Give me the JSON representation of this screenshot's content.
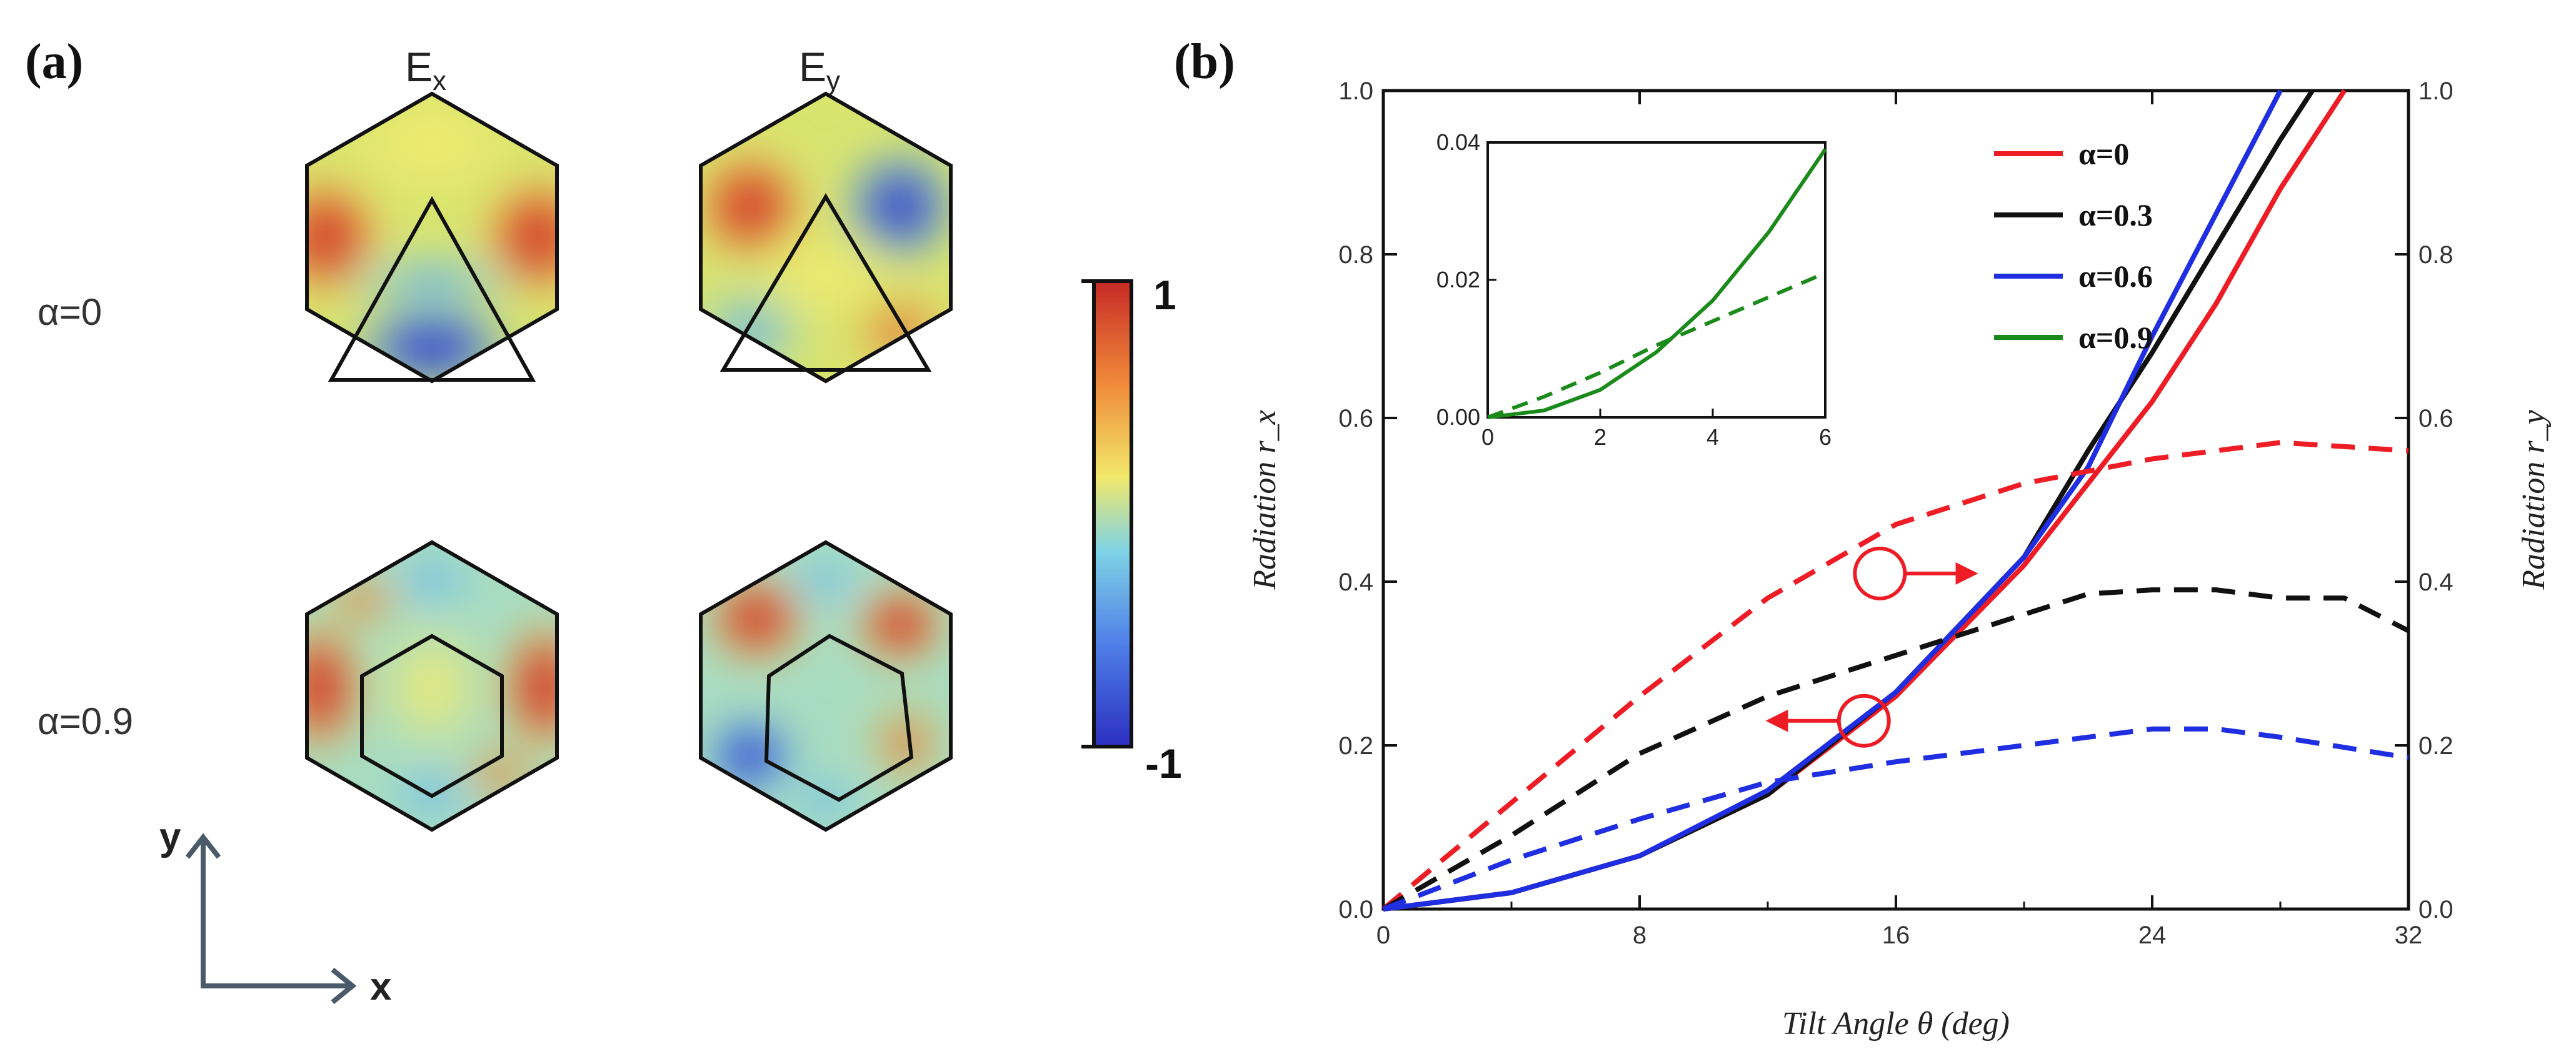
{
  "panel_a": {
    "tag": "(a)",
    "col_ex": "E",
    "col_ex_sub": "x",
    "col_ey": "E",
    "col_ey_sub": "y",
    "row1": "α=0",
    "row2": "α=0.9",
    "colorbar_max": "1",
    "colorbar_min": "-1",
    "axis_y": "y",
    "axis_x": "x",
    "colormap": [
      "#2b2fc0",
      "#4f7fe8",
      "#7fd3e6",
      "#f2e86a",
      "#f08a3a",
      "#c62a25"
    ]
  },
  "panel_b": {
    "tag": "(b)",
    "colors": {
      "a0": "#ee1c24",
      "a03": "#111111",
      "a06": "#1f2ee0",
      "a09": "#1a8a1a"
    }
  },
  "chart_data": {
    "type": "line",
    "xlabel": "Tilt Angle θ (deg)",
    "ylabel_left": "Radiation r_x",
    "ylabel_right": "Radiation r_y",
    "xlim": [
      0,
      32
    ],
    "ylim": [
      0,
      1
    ],
    "x_ticks": [
      "0",
      "8",
      "16",
      "24",
      "32"
    ],
    "y_ticks_left": [
      "0.0",
      "0.2",
      "0.4",
      "0.6",
      "0.8",
      "1.0"
    ],
    "y_ticks_right": [
      "0.0",
      "0.2",
      "0.4",
      "0.6",
      "0.8",
      "1.0"
    ],
    "legend": [
      {
        "key": "a0",
        "label": "α=0"
      },
      {
        "key": "a03",
        "label": "α=0.3"
      },
      {
        "key": "a06",
        "label": "α=0.6"
      },
      {
        "key": "a09",
        "label": "α=0.9"
      }
    ],
    "series": [
      {
        "name": "α=0 r_x (solid)",
        "color_key": "a0",
        "dash": false,
        "x": [
          0,
          4,
          8,
          12,
          16,
          20,
          22,
          24,
          26,
          28,
          30
        ],
        "y": [
          0,
          0.02,
          0.065,
          0.14,
          0.26,
          0.42,
          0.52,
          0.62,
          0.74,
          0.88,
          1.0
        ]
      },
      {
        "name": "α=0.3 r_x (solid)",
        "color_key": "a03",
        "dash": false,
        "x": [
          0,
          4,
          8,
          12,
          16,
          20,
          22,
          24,
          26,
          28,
          29
        ],
        "y": [
          0,
          0.02,
          0.065,
          0.14,
          0.265,
          0.43,
          0.56,
          0.68,
          0.81,
          0.94,
          1.0
        ]
      },
      {
        "name": "α=0.6 r_x (solid)",
        "color_key": "a06",
        "dash": false,
        "x": [
          0,
          4,
          8,
          12,
          16,
          20,
          22,
          24,
          26,
          28
        ],
        "y": [
          0,
          0.02,
          0.065,
          0.145,
          0.265,
          0.43,
          0.54,
          0.7,
          0.85,
          1.0
        ]
      },
      {
        "name": "α=0 r_y (dashed)",
        "color_key": "a0",
        "dash": true,
        "x": [
          0,
          4,
          8,
          12,
          16,
          20,
          24,
          28,
          32
        ],
        "y": [
          0,
          0.13,
          0.26,
          0.38,
          0.47,
          0.52,
          0.55,
          0.57,
          0.56
        ]
      },
      {
        "name": "α=0.3 r_y (dashed)",
        "color_key": "a03",
        "dash": true,
        "x": [
          0,
          4,
          8,
          12,
          16,
          20,
          22,
          24,
          26,
          28,
          30,
          32
        ],
        "y": [
          0,
          0.09,
          0.19,
          0.26,
          0.31,
          0.36,
          0.385,
          0.39,
          0.39,
          0.38,
          0.38,
          0.34
        ]
      },
      {
        "name": "α=0.6 r_y (dashed)",
        "color_key": "a06",
        "dash": true,
        "x": [
          0,
          4,
          8,
          12,
          16,
          20,
          24,
          26,
          28,
          32
        ],
        "y": [
          0,
          0.06,
          0.11,
          0.155,
          0.18,
          0.2,
          0.22,
          0.22,
          0.21,
          0.185
        ]
      }
    ],
    "annotations": [
      {
        "type": "circle_arrow",
        "x": 15.5,
        "y": 0.41,
        "direction": "right",
        "meaning": "dashed curves use right axis r_y"
      },
      {
        "type": "circle_arrow",
        "x": 15,
        "y": 0.23,
        "direction": "left",
        "meaning": "solid curves use left axis r_x"
      }
    ],
    "inset": {
      "xlim": [
        0,
        6
      ],
      "ylim": [
        0,
        0.04
      ],
      "x_ticks": [
        "0",
        "2",
        "4",
        "6"
      ],
      "y_ticks": [
        "0.00",
        "0.02",
        "0.04"
      ],
      "series": [
        {
          "name": "α=0.9 r_x (solid)",
          "color_key": "a09",
          "dash": false,
          "x": [
            0,
            1,
            2,
            3,
            4,
            5,
            6
          ],
          "y": [
            0,
            0.001,
            0.004,
            0.0095,
            0.017,
            0.027,
            0.039
          ]
        },
        {
          "name": "α=0.9 r_y (dashed)",
          "color_key": "a09",
          "dash": true,
          "x": [
            0,
            1,
            2,
            3,
            4,
            5,
            6
          ],
          "y": [
            0,
            0.003,
            0.0065,
            0.0105,
            0.014,
            0.0175,
            0.021
          ]
        }
      ]
    }
  }
}
